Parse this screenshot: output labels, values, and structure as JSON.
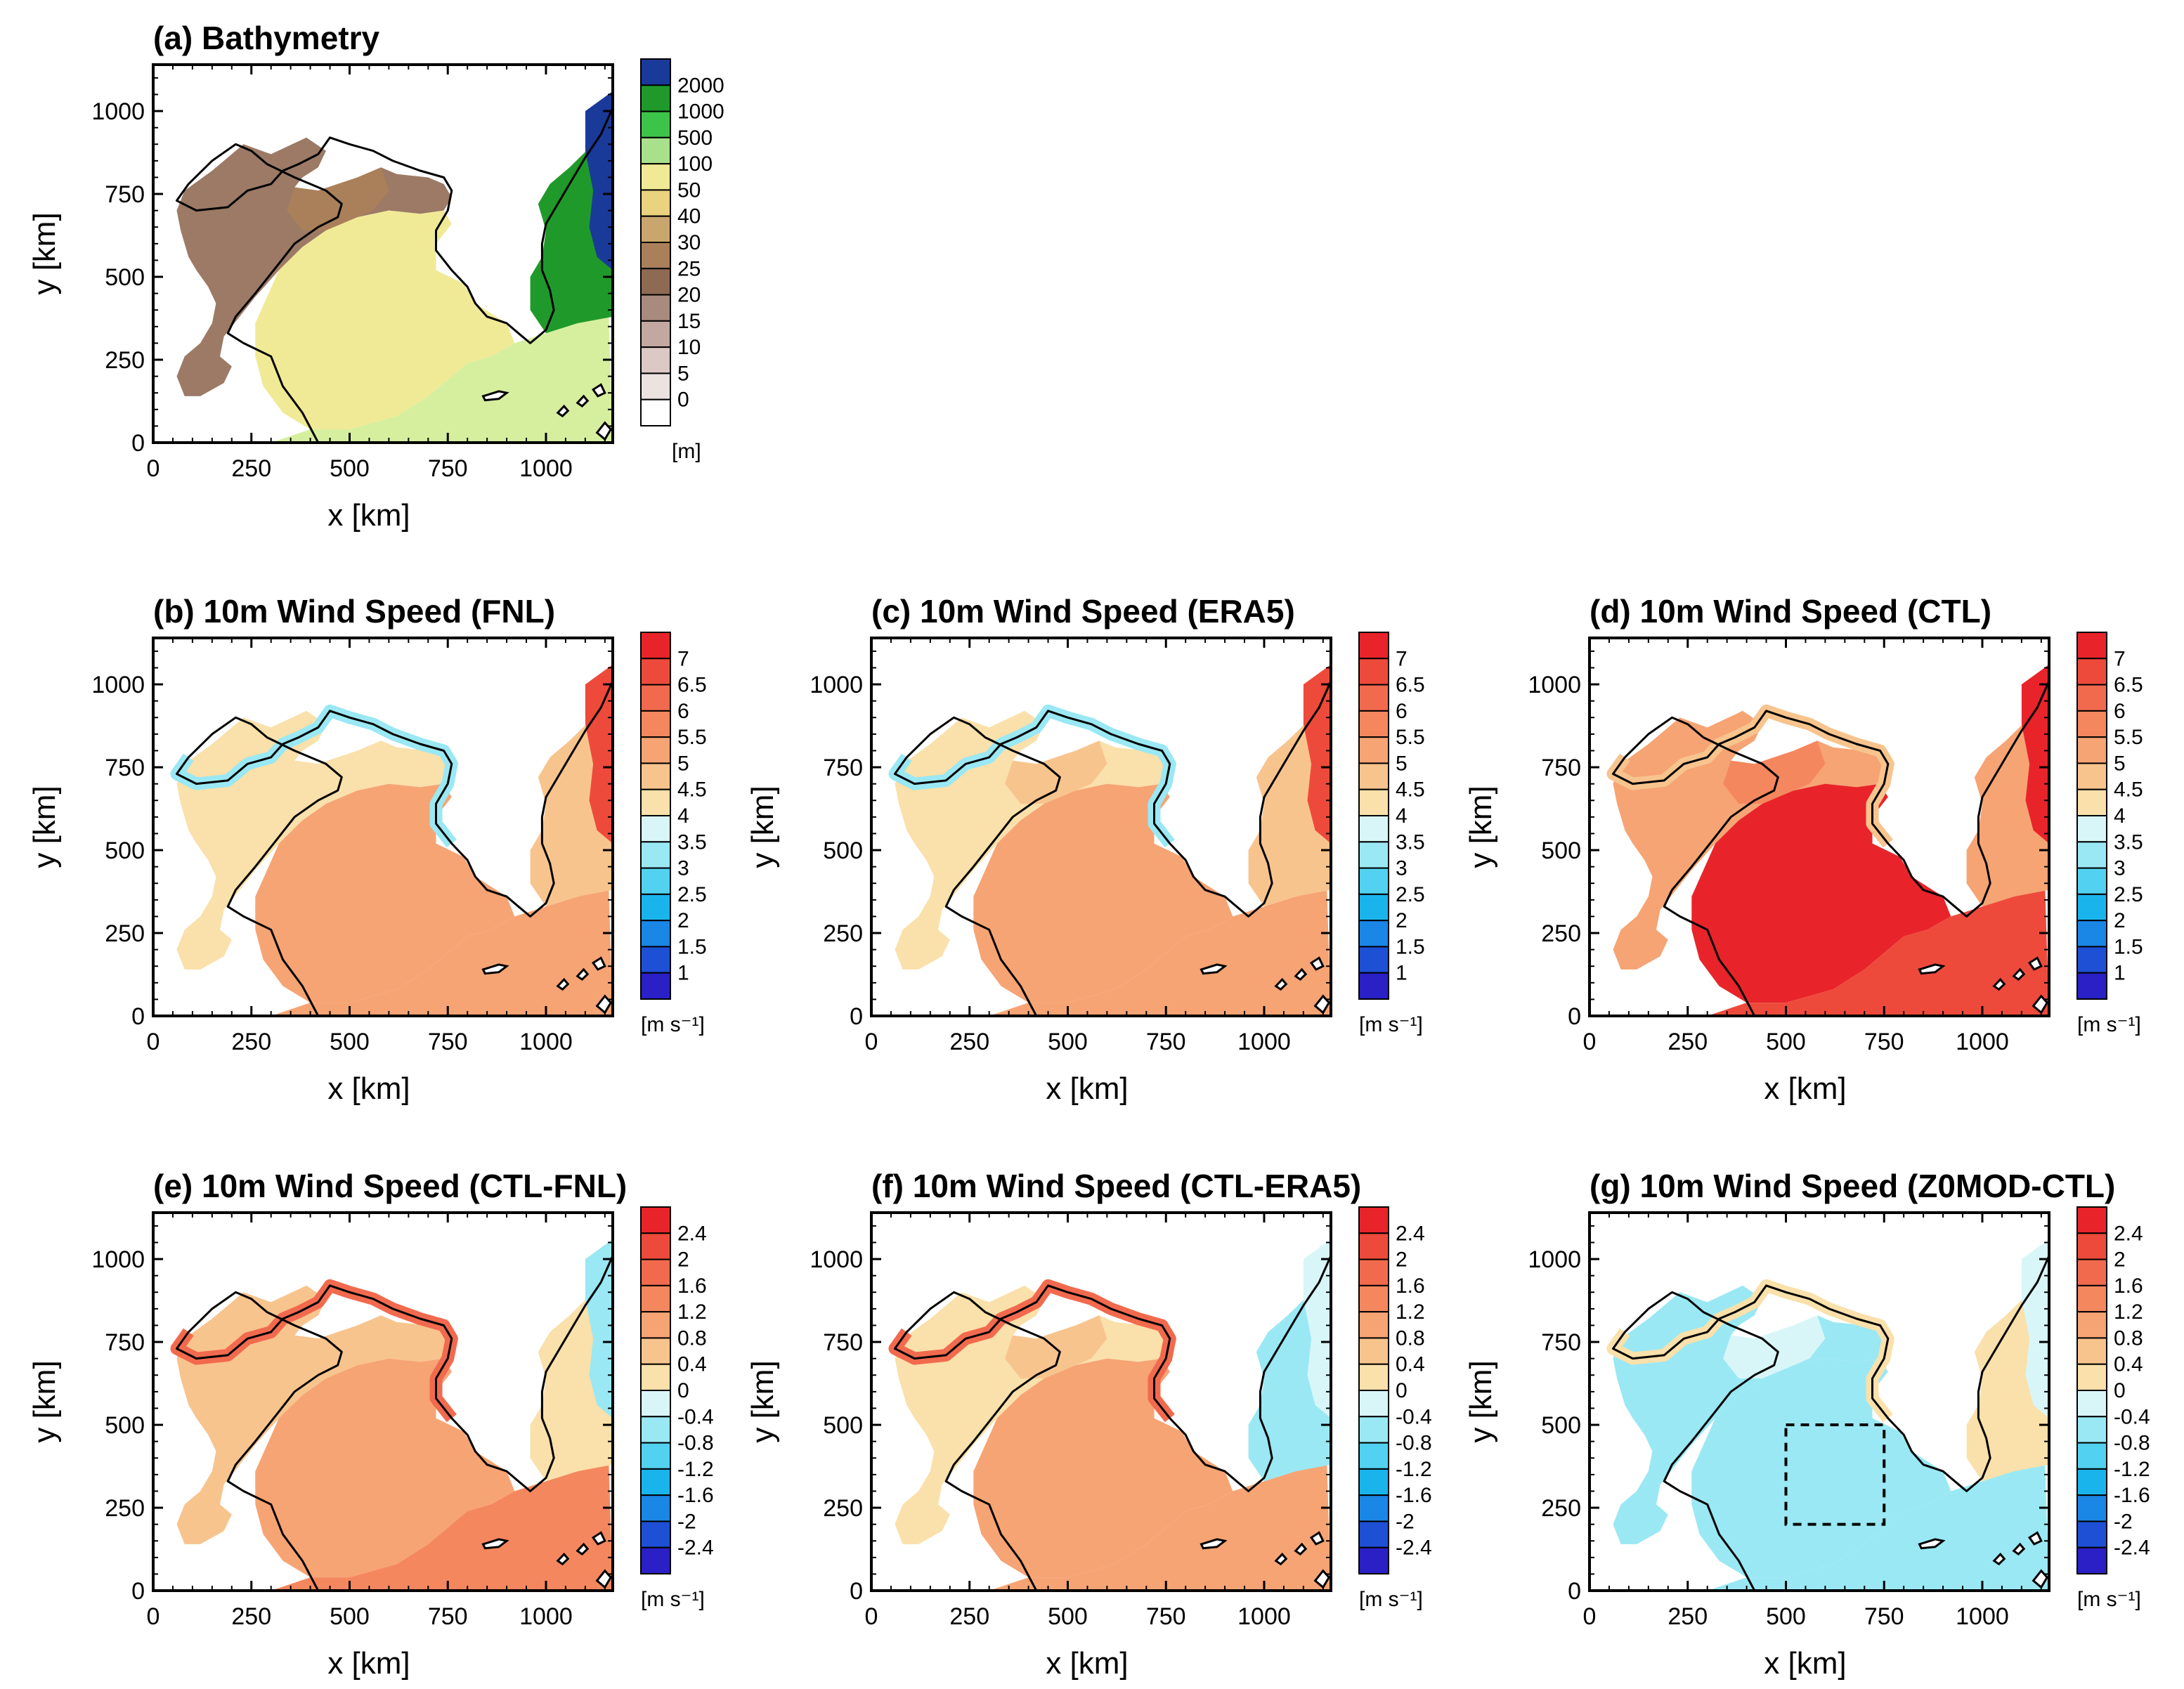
{
  "figure": {
    "x_label": "x [km]",
    "y_label": "y [km]",
    "x_ticks": [
      0,
      250,
      500,
      750,
      1000
    ],
    "y_ticks": [
      0,
      250,
      500,
      750,
      1000
    ],
    "x_range": [
      0,
      1170
    ],
    "y_range": [
      0,
      1140
    ]
  },
  "colorbars": {
    "bathymetry": {
      "unit": "[m]",
      "labels": [
        "2000",
        "1000",
        "500",
        "100",
        "50",
        "40",
        "30",
        "25",
        "20",
        "15",
        "10",
        "5",
        "0"
      ],
      "colors": [
        "#1a3a9a",
        "#1f9a2a",
        "#3cc44a",
        "#a8e08c",
        "#f0ea96",
        "#ead27e",
        "#c9a66e",
        "#a9805a",
        "#8f6a52",
        "#a88a7e",
        "#c2a8a0",
        "#dcc8c4",
        "#ece2e0",
        "#ffffff"
      ]
    },
    "speed": {
      "unit": "[m s⁻¹]",
      "labels": [
        "7",
        "6.5",
        "6",
        "5.5",
        "5",
        "4.5",
        "4",
        "3.5",
        "3",
        "2.5",
        "2",
        "1.5",
        "1"
      ],
      "colors": [
        "#e8242a",
        "#ee4a3c",
        "#f26a4e",
        "#f5875e",
        "#f6a474",
        "#f8c48e",
        "#fae0aa",
        "#d8f6f8",
        "#9ae8f4",
        "#52d2f0",
        "#1ab4ec",
        "#1a86e6",
        "#1e50d6",
        "#2a20c6"
      ]
    },
    "difference": {
      "unit": "[m s⁻¹]",
      "labels": [
        "2.4",
        "2",
        "1.6",
        "1.2",
        "0.8",
        "0.4",
        "0",
        "-0.4",
        "-0.8",
        "-1.2",
        "-1.6",
        "-2",
        "-2.4"
      ],
      "colors": [
        "#e8242a",
        "#ee4a3c",
        "#f26a4e",
        "#f5875e",
        "#f6a474",
        "#f8c48e",
        "#fae0aa",
        "#d8f6f8",
        "#9ae8f4",
        "#52d2f0",
        "#1ab4ec",
        "#1a86e6",
        "#1e50d6",
        "#2a20c6"
      ]
    }
  },
  "panels": [
    {
      "id": "a",
      "title": "(a) Bathymetry",
      "cbar": "bathymetry",
      "fill": {
        "land": "#ffffff",
        "west": "#9c7a66",
        "bohai": "#a9805a",
        "central": "#f0ea96",
        "south": "#d6ef9e",
        "east": "#1f9a2a",
        "deep": "#1a3a9a"
      }
    },
    {
      "id": "b",
      "title": "(b) 10m Wind Speed (FNL)",
      "cbar": "speed",
      "fill": {
        "west": "#fae0aa",
        "bohai": "#fae0aa",
        "central": "#f6a474",
        "south": "#f6a474",
        "east": "#f8c48e",
        "deep": "#ee4a3c",
        "coast": "#9ae8f4"
      }
    },
    {
      "id": "c",
      "title": "(c) 10m Wind Speed (ERA5)",
      "cbar": "speed",
      "fill": {
        "west": "#fae0aa",
        "bohai": "#f8c48e",
        "central": "#f6a474",
        "south": "#f6a474",
        "east": "#f8c48e",
        "deep": "#ee4a3c",
        "coast": "#9ae8f4"
      }
    },
    {
      "id": "d",
      "title": "(d) 10m Wind Speed (CTL)",
      "cbar": "speed",
      "fill": {
        "west": "#f6a474",
        "bohai": "#f5875e",
        "central": "#e8242a",
        "south": "#ee4a3c",
        "east": "#f6a474",
        "deep": "#e8242a",
        "coast": "#f8c48e"
      }
    },
    {
      "id": "e",
      "title": "(e) 10m Wind Speed (CTL-FNL)",
      "cbar": "difference",
      "fill": {
        "west": "#f8c48e",
        "bohai": "#f8c48e",
        "central": "#f6a474",
        "south": "#f5875e",
        "east": "#fae0aa",
        "deep": "#9ae8f4",
        "coast": "#f26a4e"
      }
    },
    {
      "id": "f",
      "title": "(f) 10m Wind Speed (CTL-ERA5)",
      "cbar": "difference",
      "fill": {
        "west": "#fae0aa",
        "bohai": "#f8c48e",
        "central": "#f6a474",
        "south": "#f6a474",
        "east": "#9ae8f4",
        "deep": "#d8f6f8",
        "coast": "#f26a4e"
      }
    },
    {
      "id": "g",
      "title": "(g) 10m Wind Speed (Z0MOD-CTL)",
      "cbar": "difference",
      "fill": {
        "west": "#9ae8f4",
        "bohai": "#d8f6f8",
        "central": "#9ae8f4",
        "south": "#9ae8f4",
        "east": "#fae0aa",
        "deep": "#d8f6f8",
        "coast": "#fae0aa"
      },
      "box": {
        "x": [
          500,
          750
        ],
        "y": [
          200,
          500
        ]
      }
    }
  ],
  "chart_data": [
    {
      "type": "heatmap",
      "panel": "a",
      "title": "(a) Bathymetry",
      "quantity": "depth",
      "unit": "m",
      "levels": [
        0,
        5,
        10,
        15,
        20,
        25,
        30,
        40,
        50,
        100,
        500,
        1000,
        2000
      ],
      "xlabel": "x [km]",
      "ylabel": "y [km]",
      "xlim": [
        0,
        1170
      ],
      "ylim": [
        0,
        1140
      ]
    },
    {
      "type": "heatmap",
      "panel": "b",
      "title": "(b) 10m Wind Speed (FNL)",
      "unit": "m s-1",
      "levels": [
        1,
        1.5,
        2,
        2.5,
        3,
        3.5,
        4,
        4.5,
        5,
        5.5,
        6,
        6.5,
        7
      ],
      "xlabel": "x [km]",
      "ylabel": "y [km]"
    },
    {
      "type": "heatmap",
      "panel": "c",
      "title": "(c) 10m Wind Speed (ERA5)",
      "unit": "m s-1",
      "levels": [
        1,
        1.5,
        2,
        2.5,
        3,
        3.5,
        4,
        4.5,
        5,
        5.5,
        6,
        6.5,
        7
      ],
      "xlabel": "x [km]",
      "ylabel": "y [km]"
    },
    {
      "type": "heatmap",
      "panel": "d",
      "title": "(d) 10m Wind Speed (CTL)",
      "unit": "m s-1",
      "levels": [
        1,
        1.5,
        2,
        2.5,
        3,
        3.5,
        4,
        4.5,
        5,
        5.5,
        6,
        6.5,
        7
      ],
      "xlabel": "x [km]",
      "ylabel": "y [km]"
    },
    {
      "type": "heatmap",
      "panel": "e",
      "title": "(e) 10m Wind Speed (CTL-FNL)",
      "unit": "m s-1",
      "levels": [
        -2.4,
        -2,
        -1.6,
        -1.2,
        -0.8,
        -0.4,
        0,
        0.4,
        0.8,
        1.2,
        1.6,
        2,
        2.4
      ],
      "xlabel": "x [km]",
      "ylabel": "y [km]"
    },
    {
      "type": "heatmap",
      "panel": "f",
      "title": "(f) 10m Wind Speed (CTL-ERA5)",
      "unit": "m s-1",
      "levels": [
        -2.4,
        -2,
        -1.6,
        -1.2,
        -0.8,
        -0.4,
        0,
        0.4,
        0.8,
        1.2,
        1.6,
        2,
        2.4
      ],
      "xlabel": "x [km]",
      "ylabel": "y [km]"
    },
    {
      "type": "heatmap",
      "panel": "g",
      "title": "(g) 10m Wind Speed (Z0MOD-CTL)",
      "unit": "m s-1",
      "levels": [
        -2.4,
        -2,
        -1.6,
        -1.2,
        -0.8,
        -0.4,
        0,
        0.4,
        0.8,
        1.2,
        1.6,
        2,
        2.4
      ],
      "xlabel": "x [km]",
      "ylabel": "y [km]",
      "box_km": {
        "x": [
          500,
          750
        ],
        "y": [
          200,
          500
        ]
      }
    }
  ]
}
